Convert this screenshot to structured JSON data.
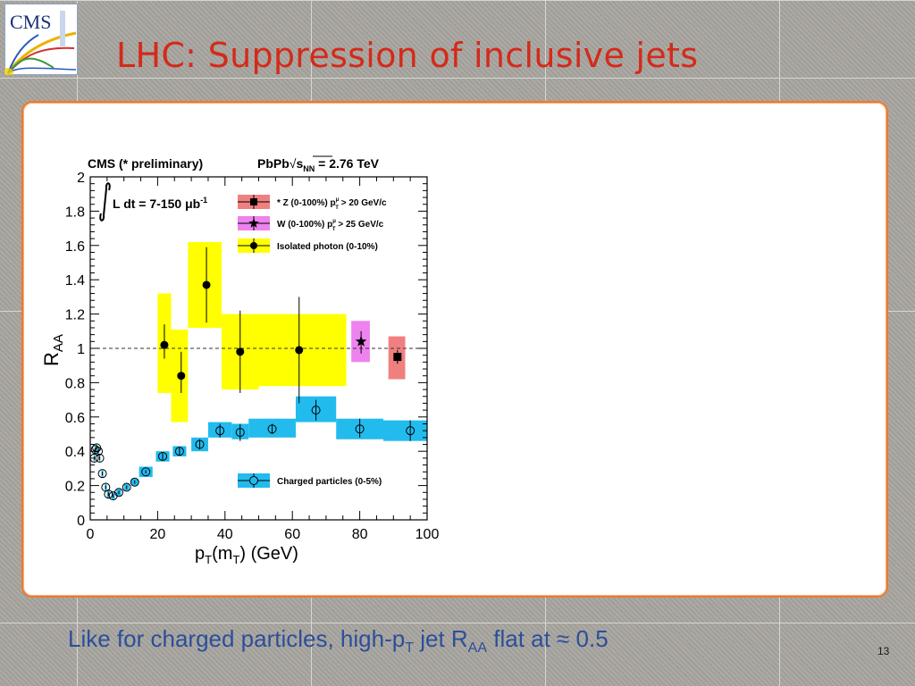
{
  "slide": {
    "title": "LHC: Suppression of inclusive jets",
    "logo_text": "CMS",
    "footer": {
      "text_a": "Like for charged particles, high-p",
      "sub_a": "T",
      "text_b": " jet R",
      "sub_b": "AA",
      "text_c": " flat at ≈ 0.5"
    },
    "page_number": "13"
  },
  "colors": {
    "title": "#d42a1a",
    "footer": "#2b4f9a",
    "panel_border": "#ec7a30",
    "z_band": "#f08080",
    "w_band": "#ee82ee",
    "photon_band": "#ffff00",
    "charged_band": "#22bbee"
  },
  "chart_data": {
    "type": "scatter",
    "header_left": "CMS (* preliminary)",
    "header_right": {
      "sys": "PbPb",
      "sqrt": "s",
      "sqrt_sub": "NN",
      "value": " = 2.76 TeV"
    },
    "lumi": {
      "text": "L dt = 7-150 ",
      "unit": "μb",
      "exp": "-1"
    },
    "xlabel": {
      "p": "p",
      "sub1": "T",
      "mid": "(m",
      "sub2": "T",
      "end": ") (GeV)"
    },
    "ylabel": {
      "main": "R",
      "sub": "AA"
    },
    "xlim": [
      0,
      100
    ],
    "ylim": [
      0,
      2
    ],
    "xticks": [
      0,
      20,
      40,
      60,
      80,
      100
    ],
    "yticks": [
      0,
      0.2,
      0.4,
      0.6,
      0.8,
      1,
      1.2,
      1.4,
      1.6,
      1.8,
      2
    ],
    "xtick_labels": [
      "0",
      "20",
      "40",
      "60",
      "80",
      "100"
    ],
    "ytick_labels": [
      "0",
      "0.2",
      "0.4",
      "0.6",
      "0.8",
      "1",
      "1.2",
      "1.4",
      "1.6",
      "1.8",
      "2"
    ],
    "reference_line": 1,
    "legend": [
      {
        "key": "z",
        "label_pre": "* Z  (0-100%) p",
        "label_sub": "T",
        "label_sup": "μ",
        "label_post": " > 20 GeV/c",
        "marker": "square",
        "band": "#f08080"
      },
      {
        "key": "w",
        "label_pre": "W  (0-100%) p",
        "label_sub": "T",
        "label_sup": "μ",
        "label_post": " > 25 GeV/c",
        "marker": "star",
        "band": "#ee82ee"
      },
      {
        "key": "photon",
        "label_pre": "Isolated photon  (0-10%)",
        "label_sub": "",
        "label_sup": "",
        "label_post": "",
        "marker": "circle",
        "band": "#ffff00"
      },
      {
        "key": "charged",
        "label_pre": "Charged particles (0-5%)",
        "label_sub": "",
        "label_sup": "",
        "label_post": "",
        "marker": "open-circle",
        "band": "#22bbee"
      }
    ],
    "series": [
      {
        "name": "Isolated photon  (0-10%)",
        "marker": "circle",
        "band_color": "#ffff00",
        "points": [
          {
            "x": 22,
            "y": 1.02,
            "err_lo": 0.94,
            "err_hi": 1.14,
            "band_x": [
              20,
              24
            ],
            "band_y": [
              0.74,
              1.32
            ]
          },
          {
            "x": 27,
            "y": 0.84,
            "err_lo": 0.74,
            "err_hi": 0.98,
            "band_x": [
              24,
              29
            ],
            "band_y": [
              0.57,
              1.11
            ]
          },
          {
            "x": 34.5,
            "y": 1.37,
            "err_lo": 1.15,
            "err_hi": 1.59,
            "band_x": [
              29,
              39
            ],
            "band_y": [
              1.12,
              1.62
            ]
          },
          {
            "x": 44.5,
            "y": 0.98,
            "err_lo": 0.74,
            "err_hi": 1.22,
            "band_x": [
              39,
              50
            ],
            "band_y": [
              0.76,
              1.2
            ]
          },
          {
            "x": 62,
            "y": 0.99,
            "err_lo": 0.68,
            "err_hi": 1.3,
            "band_x": [
              50,
              76
            ],
            "band_y": [
              0.78,
              1.2
            ]
          }
        ]
      },
      {
        "name": "W  (0-100%) pT > 25 GeV/c",
        "marker": "star",
        "band_color": "#ee82ee",
        "points": [
          {
            "x": 80.4,
            "y": 1.04,
            "err_lo": 0.97,
            "err_hi": 1.1,
            "band_x": [
              77.5,
              83
            ],
            "band_y": [
              0.92,
              1.16
            ]
          }
        ]
      },
      {
        "name": "* Z  (0-100%) pT > 20 GeV/c",
        "marker": "square",
        "band_color": "#f08080",
        "points": [
          {
            "x": 91.2,
            "y": 0.95,
            "err_lo": 0.91,
            "err_hi": 0.99,
            "band_x": [
              88.5,
              93.5
            ],
            "band_y": [
              0.82,
              1.07
            ]
          }
        ]
      },
      {
        "name": "Charged particles (0-5%)",
        "marker": "open-circle",
        "band_color": "#22bbee",
        "points": [
          {
            "x": 1.2,
            "y": 0.36,
            "err_lo": 0.35,
            "err_hi": 0.37,
            "band_x": [
              1.0,
              1.4
            ],
            "band_y": [
              0.34,
              0.38
            ]
          },
          {
            "x": 1.5,
            "y": 0.41,
            "err_lo": 0.4,
            "err_hi": 0.42,
            "band_x": [
              1.3,
              1.7
            ],
            "band_y": [
              0.39,
              0.43
            ]
          },
          {
            "x": 1.9,
            "y": 0.42,
            "err_lo": 0.41,
            "err_hi": 0.43,
            "band_x": [
              1.7,
              2.1
            ],
            "band_y": [
              0.4,
              0.44
            ]
          },
          {
            "x": 2.4,
            "y": 0.4,
            "err_lo": 0.39,
            "err_hi": 0.41,
            "band_x": [
              2.2,
              2.6
            ],
            "band_y": [
              0.38,
              0.42
            ]
          },
          {
            "x": 2.8,
            "y": 0.36,
            "err_lo": 0.35,
            "err_hi": 0.37,
            "band_x": [
              2.6,
              3.0
            ],
            "band_y": [
              0.34,
              0.38
            ]
          },
          {
            "x": 3.6,
            "y": 0.27,
            "err_lo": 0.26,
            "err_hi": 0.28,
            "band_x": [
              3.3,
              3.9
            ],
            "band_y": [
              0.25,
              0.29
            ]
          },
          {
            "x": 4.6,
            "y": 0.19,
            "err_lo": 0.18,
            "err_hi": 0.2,
            "band_x": [
              4.3,
              4.9
            ],
            "band_y": [
              0.17,
              0.21
            ]
          },
          {
            "x": 5.4,
            "y": 0.15,
            "err_lo": 0.14,
            "err_hi": 0.16,
            "band_x": [
              5.0,
              5.8
            ],
            "band_y": [
              0.13,
              0.17
            ]
          },
          {
            "x": 6.8,
            "y": 0.14,
            "err_lo": 0.13,
            "err_hi": 0.15,
            "band_x": [
              6.3,
              7.3
            ],
            "band_y": [
              0.12,
              0.16
            ]
          },
          {
            "x": 8.5,
            "y": 0.16,
            "err_lo": 0.15,
            "err_hi": 0.17,
            "band_x": [
              7.8,
              9.2
            ],
            "band_y": [
              0.14,
              0.18
            ]
          },
          {
            "x": 10.8,
            "y": 0.19,
            "err_lo": 0.18,
            "err_hi": 0.2,
            "band_x": [
              10.0,
              11.6
            ],
            "band_y": [
              0.17,
              0.21
            ]
          },
          {
            "x": 13.2,
            "y": 0.22,
            "err_lo": 0.21,
            "err_hi": 0.23,
            "band_x": [
              12.2,
              14.2
            ],
            "band_y": [
              0.2,
              0.24
            ]
          },
          {
            "x": 16.5,
            "y": 0.28,
            "err_lo": 0.27,
            "err_hi": 0.29,
            "band_x": [
              14.5,
              18.5
            ],
            "band_y": [
              0.25,
              0.31
            ]
          },
          {
            "x": 21.5,
            "y": 0.37,
            "err_lo": 0.35,
            "err_hi": 0.39,
            "band_x": [
              19.5,
              23.5
            ],
            "band_y": [
              0.34,
              0.4
            ]
          },
          {
            "x": 26.5,
            "y": 0.4,
            "err_lo": 0.38,
            "err_hi": 0.42,
            "band_x": [
              24.5,
              28.5
            ],
            "band_y": [
              0.37,
              0.43
            ]
          },
          {
            "x": 32.5,
            "y": 0.44,
            "err_lo": 0.41,
            "err_hi": 0.47,
            "band_x": [
              30,
              35
            ],
            "band_y": [
              0.4,
              0.48
            ]
          },
          {
            "x": 38.5,
            "y": 0.52,
            "err_lo": 0.48,
            "err_hi": 0.56,
            "band_x": [
              35,
              42
            ],
            "band_y": [
              0.48,
              0.57
            ]
          },
          {
            "x": 44.5,
            "y": 0.51,
            "err_lo": 0.46,
            "err_hi": 0.56,
            "band_x": [
              42,
              47
            ],
            "band_y": [
              0.47,
              0.56
            ]
          },
          {
            "x": 54,
            "y": 0.53,
            "err_lo": 0.5,
            "err_hi": 0.56,
            "band_x": [
              47,
              61
            ],
            "band_y": [
              0.48,
              0.59
            ]
          },
          {
            "x": 67,
            "y": 0.64,
            "err_lo": 0.58,
            "err_hi": 0.7,
            "band_x": [
              61,
              73
            ],
            "band_y": [
              0.57,
              0.72
            ]
          },
          {
            "x": 80,
            "y": 0.53,
            "err_lo": 0.48,
            "err_hi": 0.59,
            "band_x": [
              73,
              87
            ],
            "band_y": [
              0.47,
              0.59
            ]
          },
          {
            "x": 95,
            "y": 0.52,
            "err_lo": 0.46,
            "err_hi": 0.58,
            "band_x": [
              87,
              100
            ],
            "band_y": [
              0.46,
              0.58
            ]
          }
        ]
      }
    ]
  }
}
